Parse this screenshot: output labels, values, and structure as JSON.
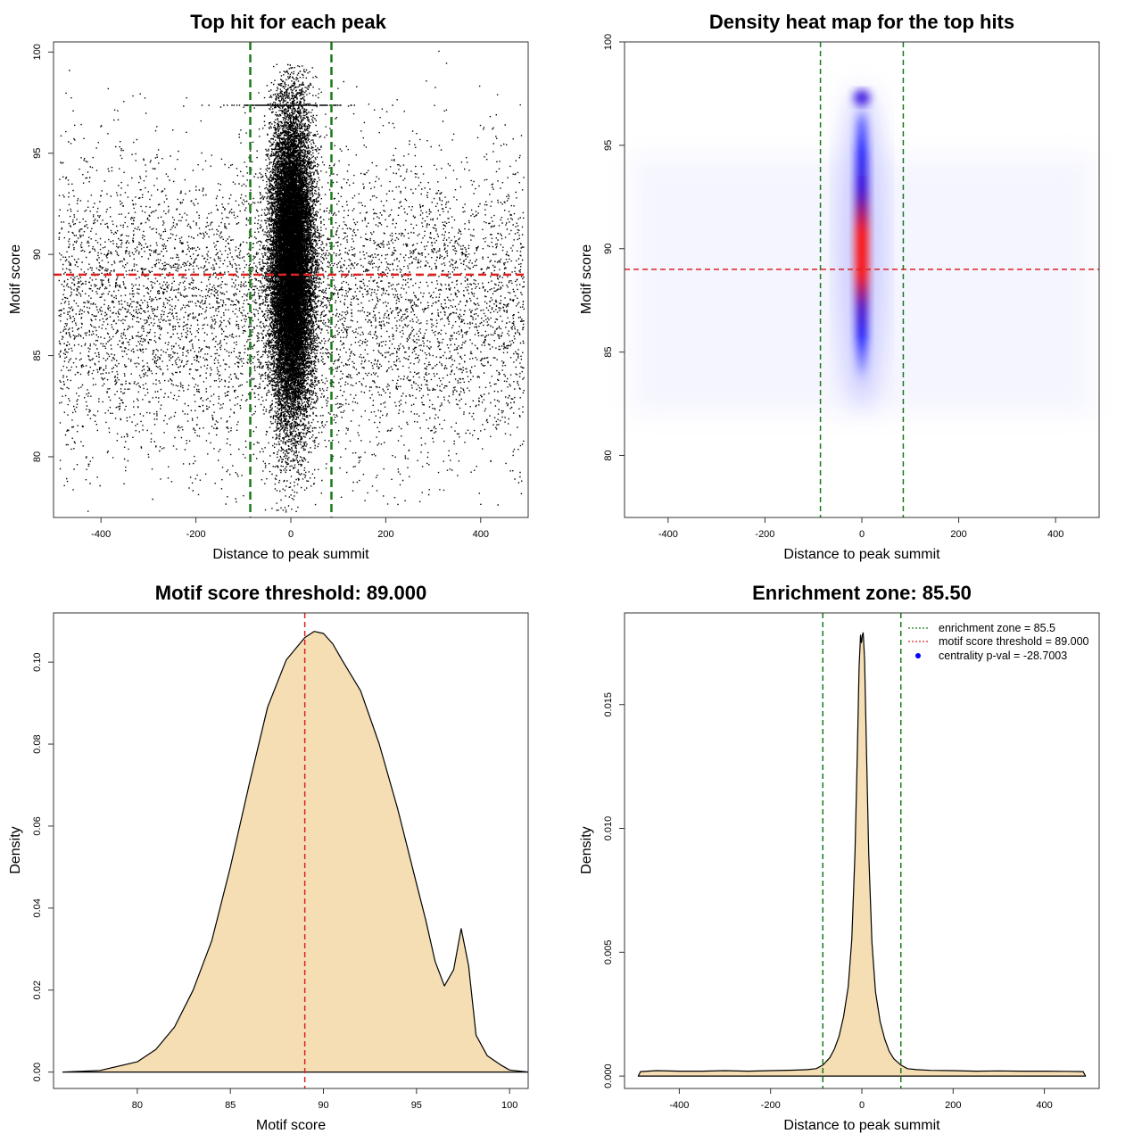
{
  "chart_data": [
    {
      "type": "scatter",
      "title": "Top hit for each peak",
      "xlabel": "Distance to peak summit",
      "ylabel": "Motif score",
      "xlim": [
        -500,
        500
      ],
      "ylim": [
        77,
        100.5
      ],
      "xticks": [
        "-400",
        "-200",
        "0",
        "200",
        "400"
      ],
      "yticks": [
        "80",
        "85",
        "90",
        "95",
        "100"
      ],
      "hlines": [
        {
          "y": 89,
          "color": "#dd2222",
          "style": "dashed"
        }
      ],
      "vlines": [
        {
          "x": -85.5,
          "color": "#1a7a1a",
          "style": "dashed"
        },
        {
          "x": 85.5,
          "color": "#1a7a1a",
          "style": "dashed"
        }
      ],
      "series": [
        {
          "values": {
            "background_x_range": [
              -490,
              490
            ],
            "background_y_center": 87.5,
            "background_y_sd": 3.8,
            "central_x_sd": 22,
            "central_y_center": 89.5,
            "central_y_sd": 3.8,
            "central_streak_y": 97.4,
            "central_max_y": 99.5
          }
        }
      ]
    },
    {
      "type": "heatmap",
      "title": "Density heat map for the top hits",
      "xlabel": "Distance to peak summit",
      "ylabel": "Motif score",
      "xlim": [
        -490,
        490
      ],
      "ylim": [
        77,
        100
      ],
      "xticks": [
        "-400",
        "-200",
        "0",
        "200",
        "400"
      ],
      "yticks": [
        "80",
        "85",
        "90",
        "95",
        "100"
      ],
      "hlines": [
        {
          "y": 89,
          "color": "#dd2222",
          "style": "dashed"
        }
      ],
      "vlines": [
        {
          "x": -85.5,
          "color": "#1a7a1a",
          "style": "dashed"
        },
        {
          "x": 85.5,
          "color": "#1a7a1a",
          "style": "dashed"
        }
      ],
      "colors": {
        "low": "#ffffff",
        "mid": "#0000ff",
        "high": "#ff0000"
      },
      "hotspot": {
        "x": 0,
        "y": 90,
        "x_halfwidth": 25,
        "y_range": [
          83,
          98
        ]
      }
    },
    {
      "type": "area",
      "title": "Motif score threshold: 89.000",
      "xlabel": "Motif score",
      "ylabel": "Density",
      "xlim": [
        75.5,
        101
      ],
      "ylim": [
        -0.004,
        0.112
      ],
      "xticks": [
        "80",
        "85",
        "90",
        "95",
        "100"
      ],
      "yticks": [
        "0.00",
        "0.02",
        "0.04",
        "0.06",
        "0.08",
        "0.10"
      ],
      "fill": "#f5deb3",
      "vlines": [
        {
          "x": 89,
          "color": "#dd2222",
          "style": "dashed"
        }
      ],
      "x": [
        76,
        78,
        80,
        81,
        82,
        83,
        84,
        85,
        86,
        87,
        88,
        89,
        89.5,
        90,
        90.5,
        91,
        92,
        93,
        94,
        95,
        95.5,
        96,
        96.5,
        97,
        97.4,
        97.8,
        98.2,
        98.8,
        99.5,
        100,
        101
      ],
      "values": [
        0,
        0.0004,
        0.0025,
        0.0055,
        0.011,
        0.02,
        0.032,
        0.05,
        0.07,
        0.089,
        0.1005,
        0.106,
        0.1075,
        0.107,
        0.1045,
        0.1005,
        0.093,
        0.08,
        0.064,
        0.046,
        0.037,
        0.027,
        0.021,
        0.025,
        0.035,
        0.026,
        0.009,
        0.004,
        0.0018,
        0.0005,
        0
      ]
    },
    {
      "type": "area",
      "title": "Enrichment zone: 85.50",
      "xlabel": "Distance to peak summit",
      "ylabel": "Density",
      "xlim": [
        -520,
        520
      ],
      "ylim": [
        -0.0005,
        0.0187
      ],
      "xticks": [
        "-400",
        "-200",
        "0",
        "200",
        "400"
      ],
      "yticks": [
        "0.000",
        "0.005",
        "0.010",
        "0.015"
      ],
      "fill": "#f5deb3",
      "vlines": [
        {
          "x": -85.5,
          "color": "#1a7a1a",
          "style": "dashed"
        },
        {
          "x": 85.5,
          "color": "#1a7a1a",
          "style": "dashed"
        }
      ],
      "x": [
        -490,
        -485,
        -450,
        -400,
        -350,
        -300,
        -250,
        -200,
        -150,
        -120,
        -100,
        -85,
        -70,
        -60,
        -50,
        -40,
        -30,
        -22,
        -15,
        -10,
        -6,
        -3,
        -1,
        0,
        1,
        3,
        6,
        10,
        15,
        22,
        30,
        40,
        50,
        60,
        70,
        85,
        100,
        120,
        150,
        200,
        250,
        300,
        350,
        400,
        450,
        485,
        490
      ],
      "values": [
        0,
        0.00018,
        0.00022,
        0.0002,
        0.0002,
        0.00022,
        0.0002,
        0.00022,
        0.00024,
        0.00026,
        0.0003,
        0.00045,
        0.00075,
        0.0011,
        0.0016,
        0.0024,
        0.0036,
        0.0055,
        0.009,
        0.013,
        0.0165,
        0.0178,
        0.0175,
        0.0176,
        0.0178,
        0.0179,
        0.0168,
        0.0133,
        0.009,
        0.0054,
        0.0034,
        0.0022,
        0.0015,
        0.001,
        0.0007,
        0.00045,
        0.0003,
        0.00026,
        0.00023,
        0.00022,
        0.0002,
        0.00021,
        0.0002,
        0.0002,
        0.00019,
        0.00018,
        0
      ]
    }
  ],
  "legend": {
    "items": [
      {
        "label": "enrichment zone = 85.5",
        "color": "#1a7a1a",
        "kind": "dotted-line"
      },
      {
        "label": "motif score threshold = 89.000",
        "color": "#dd2222",
        "kind": "dotted-line"
      },
      {
        "label": "centrality p-val = -28.7003",
        "color": "#0000ff",
        "kind": "point"
      }
    ],
    "position": "top-right"
  }
}
